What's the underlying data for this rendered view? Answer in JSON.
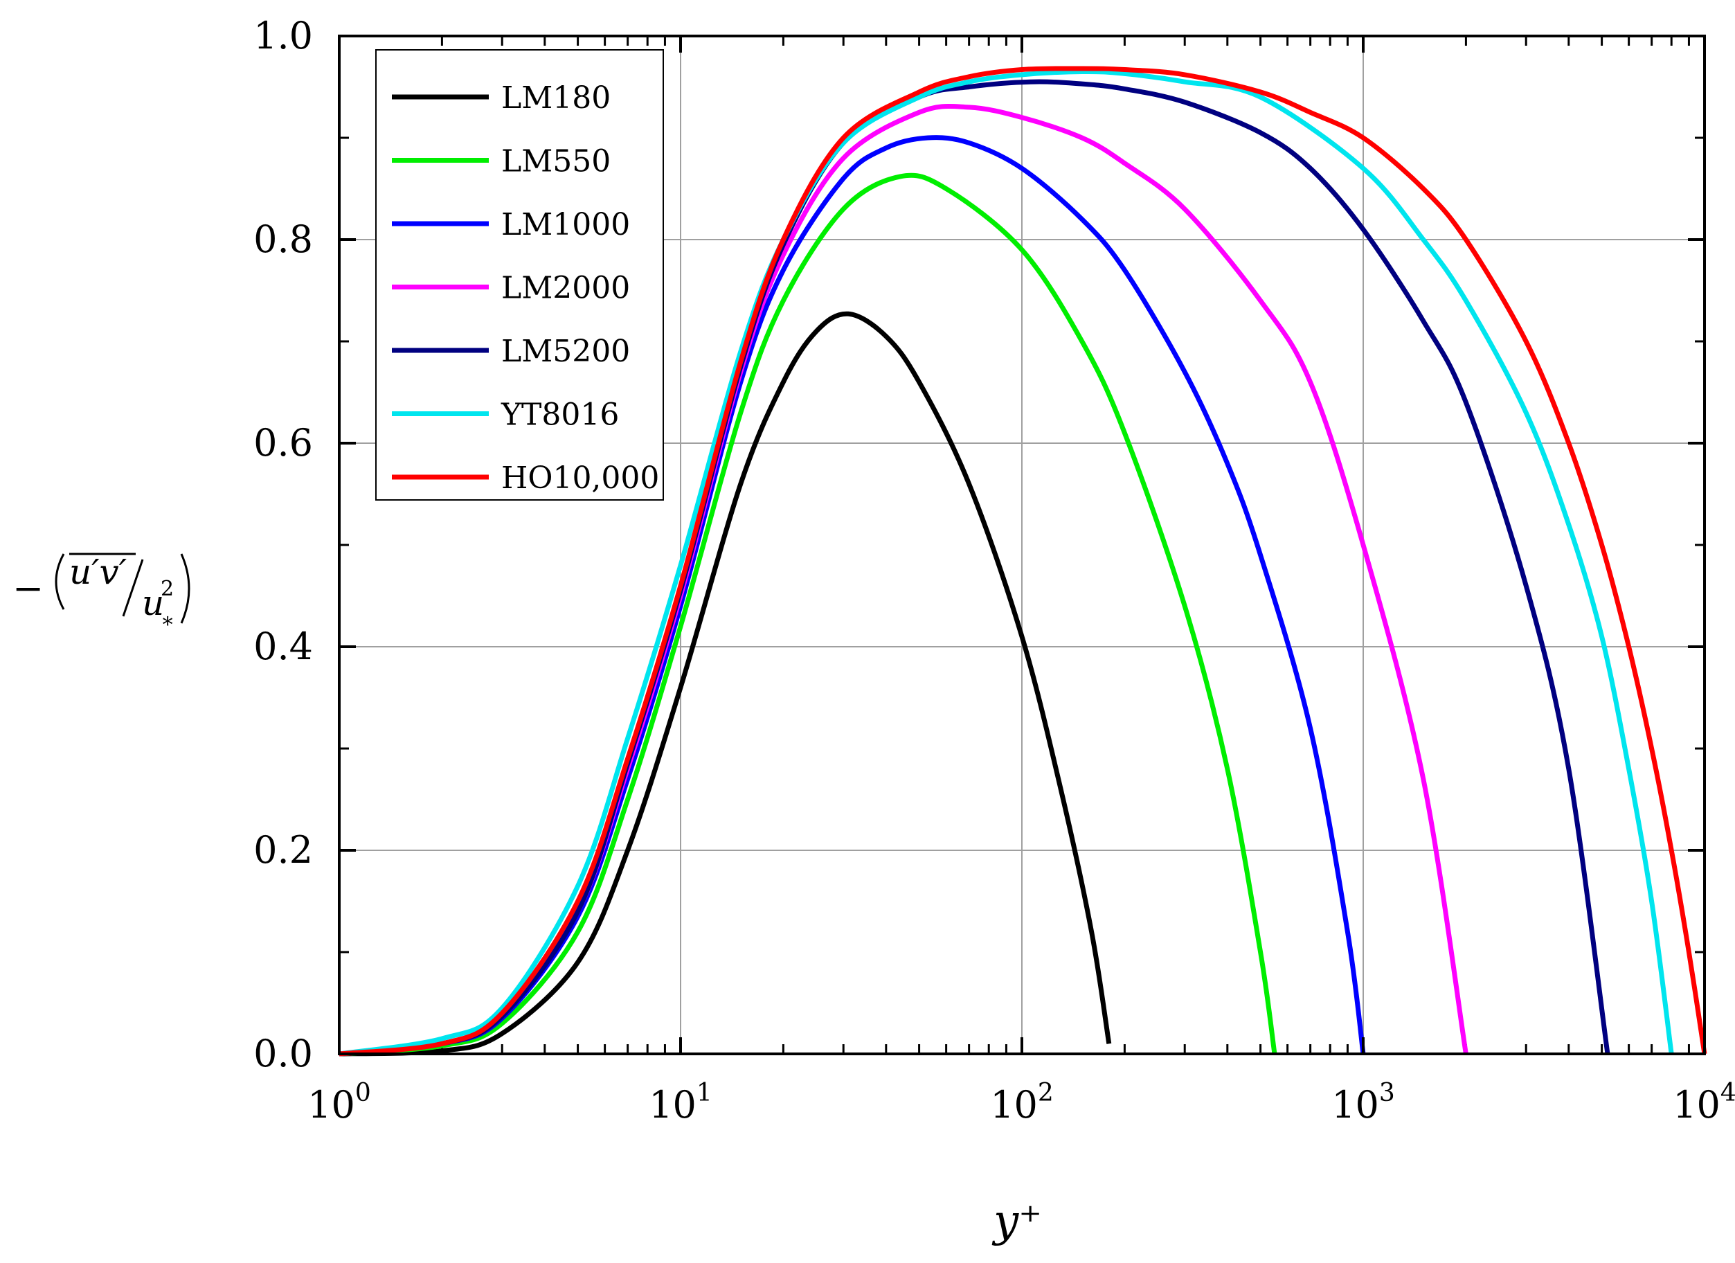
{
  "chart_data": {
    "type": "line",
    "xscale": "log",
    "xlim": [
      1,
      10000
    ],
    "ylim": [
      0,
      1.0
    ],
    "grid": true,
    "legend_position": "top-left",
    "xlabel": "y⁺",
    "ylabel": "−(u′v′/u∗²)",
    "ylabel_parts": {
      "minus": "−",
      "numerator": "u′v′",
      "denominator_base": "u",
      "denominator_sub": "∗",
      "denominator_sup": "2"
    },
    "x_ticks": [
      {
        "value": 1,
        "base": "10",
        "exp": "0"
      },
      {
        "value": 10,
        "base": "10",
        "exp": "1"
      },
      {
        "value": 100,
        "base": "10",
        "exp": "2"
      },
      {
        "value": 1000,
        "base": "10",
        "exp": "3"
      },
      {
        "value": 10000,
        "base": "10",
        "exp": "4"
      }
    ],
    "y_ticks": [
      {
        "value": 0.0,
        "label": "0.0"
      },
      {
        "value": 0.2,
        "label": "0.2"
      },
      {
        "value": 0.4,
        "label": "0.4"
      },
      {
        "value": 0.6,
        "label": "0.6"
      },
      {
        "value": 0.8,
        "label": "0.8"
      },
      {
        "value": 1.0,
        "label": "1.0"
      }
    ],
    "series": [
      {
        "name": "LM180",
        "color": "#000000",
        "x": [
          1,
          2,
          3,
          5,
          7,
          10,
          15,
          20,
          25,
          31,
          40,
          50,
          70,
          100,
          130,
          160,
          180
        ],
        "y": [
          0.0,
          0.003,
          0.02,
          0.09,
          0.2,
          0.36,
          0.56,
          0.66,
          0.71,
          0.727,
          0.705,
          0.66,
          0.56,
          0.41,
          0.26,
          0.12,
          0.01
        ]
      },
      {
        "name": "LM550",
        "color": "#00ee00",
        "x": [
          1,
          2,
          3,
          5,
          7,
          10,
          15,
          20,
          30,
          44,
          60,
          100,
          150,
          200,
          300,
          400,
          500,
          550
        ],
        "y": [
          0.0,
          0.008,
          0.03,
          0.12,
          0.25,
          0.42,
          0.63,
          0.74,
          0.83,
          0.862,
          0.85,
          0.79,
          0.7,
          0.61,
          0.44,
          0.28,
          0.1,
          0.0
        ]
      },
      {
        "name": "LM1000",
        "color": "#0000ff",
        "x": [
          1,
          2,
          3,
          5,
          7,
          10,
          15,
          20,
          30,
          40,
          53,
          70,
          100,
          150,
          200,
          300,
          400,
          500,
          700,
          900,
          1000
        ],
        "y": [
          0.0,
          0.01,
          0.035,
          0.135,
          0.27,
          0.44,
          0.66,
          0.77,
          0.86,
          0.89,
          0.9,
          0.895,
          0.87,
          0.82,
          0.77,
          0.67,
          0.58,
          0.49,
          0.32,
          0.12,
          0.0
        ]
      },
      {
        "name": "LM2000",
        "color": "#ff00ff",
        "x": [
          1,
          2,
          3,
          5,
          7,
          10,
          15,
          20,
          30,
          50,
          70,
          100,
          150,
          200,
          300,
          500,
          700,
          1000,
          1500,
          2000
        ],
        "y": [
          0.0,
          0.01,
          0.037,
          0.14,
          0.28,
          0.45,
          0.67,
          0.785,
          0.88,
          0.925,
          0.93,
          0.92,
          0.9,
          0.875,
          0.83,
          0.74,
          0.66,
          0.5,
          0.27,
          0.0
        ]
      },
      {
        "name": "LM5200",
        "color": "#000080",
        "x": [
          1,
          2,
          3,
          5,
          7,
          10,
          15,
          20,
          30,
          50,
          70,
          106,
          150,
          200,
          300,
          500,
          700,
          1000,
          1500,
          2000,
          3000,
          4000,
          5200
        ],
        "y": [
          0.0,
          0.01,
          0.037,
          0.14,
          0.285,
          0.455,
          0.675,
          0.795,
          0.895,
          0.94,
          0.95,
          0.955,
          0.953,
          0.948,
          0.935,
          0.905,
          0.87,
          0.81,
          0.72,
          0.64,
          0.46,
          0.28,
          0.0
        ]
      },
      {
        "name": "YT8016",
        "color": "#00e5ee",
        "x": [
          1,
          2,
          3,
          5,
          7,
          10,
          15,
          20,
          30,
          50,
          70,
          100,
          150,
          200,
          300,
          500,
          1000,
          1500,
          2000,
          3000,
          4000,
          5000,
          6000,
          7000,
          8000
        ],
        "y": [
          0.0,
          0.015,
          0.045,
          0.165,
          0.31,
          0.48,
          0.69,
          0.8,
          0.895,
          0.94,
          0.955,
          0.962,
          0.965,
          0.963,
          0.955,
          0.94,
          0.87,
          0.8,
          0.74,
          0.63,
          0.52,
          0.41,
          0.28,
          0.15,
          0.0
        ]
      },
      {
        "name": "HO10,000",
        "color": "#ff0000",
        "x": [
          1,
          2,
          3,
          5,
          7,
          10,
          15,
          20,
          30,
          50,
          70,
          100,
          150,
          200,
          300,
          500,
          700,
          1000,
          1500,
          2000,
          3000,
          4000,
          5000,
          6000,
          7000,
          8000,
          9000,
          10000
        ],
        "y": [
          0.0,
          0.01,
          0.04,
          0.15,
          0.29,
          0.46,
          0.68,
          0.8,
          0.9,
          0.945,
          0.96,
          0.967,
          0.968,
          0.967,
          0.962,
          0.945,
          0.925,
          0.9,
          0.85,
          0.8,
          0.7,
          0.6,
          0.5,
          0.4,
          0.3,
          0.2,
          0.1,
          0.0
        ]
      }
    ]
  }
}
